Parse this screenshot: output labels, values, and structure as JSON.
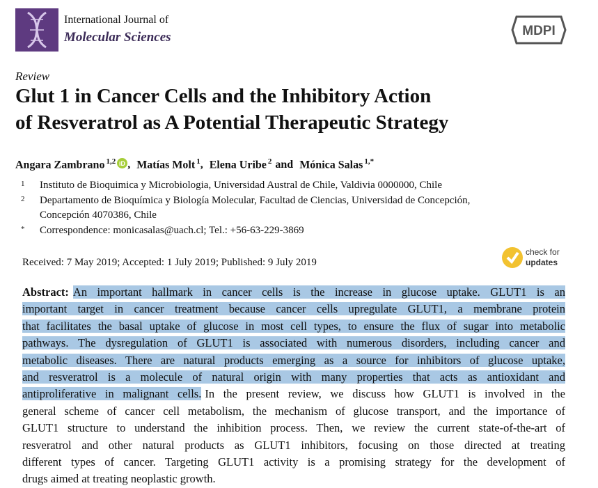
{
  "journal": {
    "line1": "International Journal of",
    "line2": "Molecular Sciences"
  },
  "publisher": "MDPI",
  "article_type": "Review",
  "title_lines": [
    "Glut 1 in Cancer Cells and the Inhibitory Action",
    "of Resveratrol as A Potential Therapeutic Strategy"
  ],
  "authors": [
    {
      "name": "Angara Zambrano",
      "affil": "1,2",
      "sep": ","
    },
    {
      "name": "Matías Molt",
      "affil": "1",
      "sep": ","
    },
    {
      "name": "Elena Uribe",
      "affil": "2",
      "sep": "and"
    },
    {
      "name": "Mónica Salas",
      "affil": "1,*"
    }
  ],
  "affiliations": [
    {
      "marker": "1",
      "lines": [
        "Instituto de Bioquimica y Microbiologia, Universidad Austral de Chile, Valdivia 0000000, Chile"
      ]
    },
    {
      "marker": "2",
      "lines": [
        "Departamento de Bioquímica y Biología Molecular, Facultad de Ciencias, Universidad de Concepción,",
        "Concepción 4070386, Chile"
      ]
    },
    {
      "marker": "*",
      "lines": [
        "Correspondence: monicasalas@uach.cl; Tel.: +56-63-229-3869"
      ]
    }
  ],
  "dates": "Received: 7 May 2019; Accepted: 1 July 2019; Published: 9 July 2019",
  "check_updates": {
    "line1": "check for",
    "line2": "updates"
  },
  "abstract": {
    "label": "Abstract:",
    "lines": [
      {
        "marked": "An important hallmark in cancer cells is the increase in glucose uptake.  GLUT1 is an"
      },
      {
        "marked": "important target in cancer treatment because cancer cells upregulate GLUT1, a membrane protein"
      },
      {
        "marked": "that facilitates the basal uptake of glucose in most cell types, to ensure the flux of sugar into metabolic"
      },
      {
        "marked": "pathways. The dysregulation of GLUT1 is associated with numerous disorders, including cancer and"
      },
      {
        "marked": "metabolic diseases. There are natural products emerging as a source for inhibitors of glucose uptake,"
      },
      {
        "marked": "and resveratrol is a molecule of natural origin with many properties that acts as antioxidant and"
      },
      {
        "marked": "antiproliferative in malignant cells.",
        "plain": "In the present review, we discuss how GLUT1 is involved in the"
      },
      {
        "plain": "general scheme of cancer cell metabolism, the mechanism of glucose transport, and the importance of"
      },
      {
        "plain": "GLUT1 structure to understand the inhibition process. Then, we review the current state-of-the-art of"
      },
      {
        "plain": "resveratrol and other natural products as GLUT1 inhibitors, focusing on those directed at treating"
      },
      {
        "plain": "different types of cancer. Targeting GLUT1 activity is a promising strategy for the development of"
      },
      {
        "plain": "drugs aimed at treating neoplastic growth."
      }
    ]
  }
}
